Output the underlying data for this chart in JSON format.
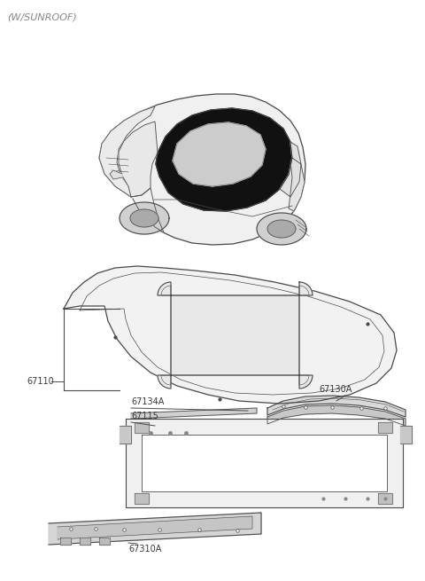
{
  "title": "(W/SUNROOF)",
  "background_color": "#ffffff",
  "text_color": "#3a3a3a",
  "line_color": "#4a4a4a",
  "fig_width": 4.8,
  "fig_height": 6.55,
  "dpi": 100,
  "label_fs": 7.0,
  "lw": 0.7,
  "part_ids": [
    "67110",
    "67134A",
    "67115",
    "67130A",
    "67310A"
  ]
}
